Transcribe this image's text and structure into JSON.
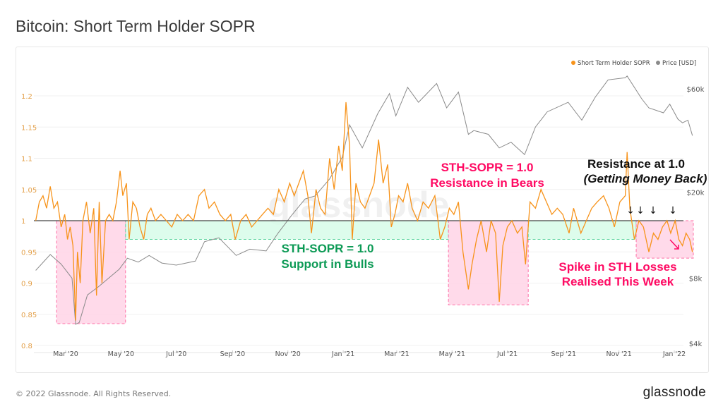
{
  "header": {
    "title": "Bitcoin: Short Term Holder SOPR"
  },
  "footer": {
    "copyright": "© 2022 Glassnode. All Rights Reserved.",
    "logo": "glassnode"
  },
  "watermark": "glassnode",
  "colors": {
    "sopr": "#f7931a",
    "price": "#8a8a8a",
    "pink_zone": "#ffd3e6",
    "green_zone": "#d7fbe9",
    "pink_text": "#ff0a63",
    "green_text": "#0c9a55",
    "left_axis": "#e3a04a"
  },
  "chart_data": {
    "type": "line",
    "title": "Bitcoin: Short Term Holder SOPR",
    "legend": {
      "placement": "top-right",
      "entries": [
        "Short Term Holder SOPR",
        "Price [USD]"
      ]
    },
    "x_range": [
      "2020-01-28",
      "2022-01-21"
    ],
    "x_ticks": [
      [
        "2020-03-01",
        "Mar '20"
      ],
      [
        "2020-05-01",
        "May '20"
      ],
      [
        "2020-07-01",
        "Jul '20"
      ],
      [
        "2020-09-01",
        "Sep '20"
      ],
      [
        "2020-11-01",
        "Nov '20"
      ],
      [
        "2021-01-01",
        "Jan '21"
      ],
      [
        "2021-03-01",
        "Mar '21"
      ],
      [
        "2021-05-01",
        "May '21"
      ],
      [
        "2021-07-01",
        "Jul '21"
      ],
      [
        "2021-09-01",
        "Sep '21"
      ],
      [
        "2021-11-01",
        "Nov '21"
      ],
      [
        "2022-01-01",
        "Jan '22"
      ]
    ],
    "y_left": {
      "range": [
        0.8,
        1.2
      ],
      "ticks": [
        "0.8",
        "0.85",
        "0.9",
        "0.95",
        "1",
        "1.05",
        "1.1",
        "1.15",
        "1.2"
      ],
      "scale": "linear"
    },
    "y_right": {
      "range": [
        4000,
        60000
      ],
      "scale": "log",
      "ticks": [
        [
          4000,
          "$4k"
        ],
        [
          8000,
          "$8k"
        ],
        [
          20000,
          "$20k"
        ],
        [
          60000,
          "$60k"
        ]
      ]
    },
    "grid": true,
    "reference_line": 1.0,
    "zones": [
      {
        "kind": "pink",
        "from": "2020-02-20",
        "to": "2020-05-06",
        "y": [
          0.835,
          1.0
        ]
      },
      {
        "kind": "green",
        "from": "2020-05-06",
        "to": "2021-04-27",
        "y": [
          0.97,
          1.0
        ]
      },
      {
        "kind": "pink",
        "from": "2021-04-27",
        "to": "2021-07-24",
        "y": [
          0.865,
          1.0
        ]
      },
      {
        "kind": "green",
        "from": "2021-07-24",
        "to": "2021-11-20",
        "y": [
          0.97,
          1.0
        ]
      },
      {
        "kind": "pink",
        "from": "2021-11-20",
        "to": "2022-01-22",
        "y": [
          0.94,
          1.0
        ]
      }
    ],
    "annotations": {
      "bears": [
        "STH-SOPR = 1.0",
        "Resistance in Bears"
      ],
      "bulls": [
        "STH-SOPR = 1.0",
        "Support in Bulls"
      ],
      "resistance_title": "Resistance at 1.0",
      "resistance_sub": "(Getting Money Back)",
      "spike": [
        "Spike in STH Losses",
        "Realised This Week"
      ]
    },
    "series": [
      {
        "name": "Short Term Holder SOPR",
        "axis": "left",
        "points": [
          [
            "2020-01-28",
            1.0
          ],
          [
            "2020-02-01",
            1.03
          ],
          [
            "2020-02-05",
            1.04
          ],
          [
            "2020-02-09",
            1.02
          ],
          [
            "2020-02-13",
            1.055
          ],
          [
            "2020-02-17",
            1.02
          ],
          [
            "2020-02-21",
            1.03
          ],
          [
            "2020-02-25",
            0.99
          ],
          [
            "2020-02-29",
            1.01
          ],
          [
            "2020-03-03",
            0.97
          ],
          [
            "2020-03-06",
            0.99
          ],
          [
            "2020-03-09",
            0.96
          ],
          [
            "2020-03-12",
            0.84
          ],
          [
            "2020-03-14",
            0.95
          ],
          [
            "2020-03-17",
            0.9
          ],
          [
            "2020-03-20",
            1.0
          ],
          [
            "2020-03-24",
            1.03
          ],
          [
            "2020-03-28",
            0.98
          ],
          [
            "2020-04-01",
            1.02
          ],
          [
            "2020-04-04",
            0.88
          ],
          [
            "2020-04-07",
            1.03
          ],
          [
            "2020-04-10",
            0.9
          ],
          [
            "2020-04-14",
            1.0
          ],
          [
            "2020-04-18",
            1.01
          ],
          [
            "2020-04-22",
            1.0
          ],
          [
            "2020-04-26",
            1.03
          ],
          [
            "2020-04-30",
            1.08
          ],
          [
            "2020-05-03",
            1.04
          ],
          [
            "2020-05-07",
            1.06
          ],
          [
            "2020-05-10",
            0.97
          ],
          [
            "2020-05-14",
            1.03
          ],
          [
            "2020-05-18",
            1.02
          ],
          [
            "2020-05-22",
            0.99
          ],
          [
            "2020-05-26",
            0.97
          ],
          [
            "2020-05-30",
            1.01
          ],
          [
            "2020-06-03",
            1.02
          ],
          [
            "2020-06-08",
            1.0
          ],
          [
            "2020-06-14",
            1.01
          ],
          [
            "2020-06-20",
            1.0
          ],
          [
            "2020-06-26",
            0.99
          ],
          [
            "2020-07-02",
            1.01
          ],
          [
            "2020-07-08",
            1.0
          ],
          [
            "2020-07-14",
            1.01
          ],
          [
            "2020-07-20",
            1.0
          ],
          [
            "2020-07-26",
            1.04
          ],
          [
            "2020-08-01",
            1.05
          ],
          [
            "2020-08-06",
            1.02
          ],
          [
            "2020-08-12",
            1.03
          ],
          [
            "2020-08-18",
            1.01
          ],
          [
            "2020-08-24",
            1.0
          ],
          [
            "2020-08-30",
            1.01
          ],
          [
            "2020-09-04",
            0.97
          ],
          [
            "2020-09-10",
            1.0
          ],
          [
            "2020-09-16",
            1.01
          ],
          [
            "2020-09-22",
            0.99
          ],
          [
            "2020-09-28",
            1.0
          ],
          [
            "2020-10-04",
            1.01
          ],
          [
            "2020-10-10",
            1.02
          ],
          [
            "2020-10-16",
            1.01
          ],
          [
            "2020-10-22",
            1.05
          ],
          [
            "2020-10-28",
            1.03
          ],
          [
            "2020-11-03",
            1.06
          ],
          [
            "2020-11-08",
            1.04
          ],
          [
            "2020-11-13",
            1.06
          ],
          [
            "2020-11-18",
            1.08
          ],
          [
            "2020-11-23",
            1.04
          ],
          [
            "2020-11-27",
            0.98
          ],
          [
            "2020-12-02",
            1.05
          ],
          [
            "2020-12-07",
            1.02
          ],
          [
            "2020-12-12",
            1.01
          ],
          [
            "2020-12-17",
            1.1
          ],
          [
            "2020-12-22",
            1.05
          ],
          [
            "2020-12-27",
            1.12
          ],
          [
            "2020-12-31",
            1.08
          ],
          [
            "2021-01-04",
            1.19
          ],
          [
            "2021-01-08",
            1.12
          ],
          [
            "2021-01-11",
            0.97
          ],
          [
            "2021-01-15",
            1.06
          ],
          [
            "2021-01-20",
            1.03
          ],
          [
            "2021-01-25",
            1.02
          ],
          [
            "2021-01-30",
            1.04
          ],
          [
            "2021-02-04",
            1.06
          ],
          [
            "2021-02-09",
            1.13
          ],
          [
            "2021-02-14",
            1.06
          ],
          [
            "2021-02-19",
            1.09
          ],
          [
            "2021-02-23",
            0.99
          ],
          [
            "2021-02-27",
            1.01
          ],
          [
            "2021-03-03",
            1.04
          ],
          [
            "2021-03-08",
            1.03
          ],
          [
            "2021-03-13",
            1.06
          ],
          [
            "2021-03-18",
            1.02
          ],
          [
            "2021-03-24",
            1.0
          ],
          [
            "2021-03-30",
            1.03
          ],
          [
            "2021-04-05",
            1.02
          ],
          [
            "2021-04-12",
            1.04
          ],
          [
            "2021-04-18",
            0.97
          ],
          [
            "2021-04-23",
            0.99
          ],
          [
            "2021-04-28",
            1.02
          ],
          [
            "2021-05-03",
            1.01
          ],
          [
            "2021-05-08",
            1.03
          ],
          [
            "2021-05-13",
            0.95
          ],
          [
            "2021-05-19",
            0.89
          ],
          [
            "2021-05-23",
            0.93
          ],
          [
            "2021-05-28",
            0.97
          ],
          [
            "2021-06-02",
            1.0
          ],
          [
            "2021-06-08",
            0.95
          ],
          [
            "2021-06-13",
            1.0
          ],
          [
            "2021-06-18",
            0.98
          ],
          [
            "2021-06-22",
            0.87
          ],
          [
            "2021-06-26",
            0.96
          ],
          [
            "2021-07-01",
            0.99
          ],
          [
            "2021-07-06",
            1.0
          ],
          [
            "2021-07-12",
            0.98
          ],
          [
            "2021-07-17",
            0.99
          ],
          [
            "2021-07-21",
            0.93
          ],
          [
            "2021-07-26",
            1.03
          ],
          [
            "2021-08-01",
            1.02
          ],
          [
            "2021-08-07",
            1.05
          ],
          [
            "2021-08-13",
            1.03
          ],
          [
            "2021-08-19",
            1.01
          ],
          [
            "2021-08-25",
            1.02
          ],
          [
            "2021-08-31",
            1.01
          ],
          [
            "2021-09-07",
            0.98
          ],
          [
            "2021-09-12",
            1.02
          ],
          [
            "2021-09-20",
            0.98
          ],
          [
            "2021-09-26",
            1.0
          ],
          [
            "2021-10-02",
            1.02
          ],
          [
            "2021-10-08",
            1.03
          ],
          [
            "2021-10-15",
            1.04
          ],
          [
            "2021-10-21",
            1.02
          ],
          [
            "2021-10-27",
            0.99
          ],
          [
            "2021-11-02",
            1.03
          ],
          [
            "2021-11-08",
            1.04
          ],
          [
            "2021-11-10",
            1.11
          ],
          [
            "2021-11-13",
            1.02
          ],
          [
            "2021-11-18",
            0.97
          ],
          [
            "2021-11-23",
            1.0
          ],
          [
            "2021-11-28",
            0.99
          ],
          [
            "2021-12-04",
            0.95
          ],
          [
            "2021-12-09",
            0.98
          ],
          [
            "2021-12-14",
            0.97
          ],
          [
            "2021-12-19",
            0.99
          ],
          [
            "2021-12-24",
            1.0
          ],
          [
            "2021-12-28",
            0.98
          ],
          [
            "2022-01-02",
            1.0
          ],
          [
            "2022-01-06",
            0.97
          ],
          [
            "2022-01-10",
            0.96
          ],
          [
            "2022-01-14",
            0.98
          ],
          [
            "2022-01-18",
            0.97
          ],
          [
            "2022-01-21",
            0.95
          ]
        ]
      },
      {
        "name": "Price [USD]",
        "axis": "right",
        "points": [
          [
            "2020-01-28",
            8700
          ],
          [
            "2020-02-13",
            10300
          ],
          [
            "2020-02-25",
            9300
          ],
          [
            "2020-03-08",
            8000
          ],
          [
            "2020-03-12",
            4900
          ],
          [
            "2020-03-16",
            5000
          ],
          [
            "2020-03-25",
            6700
          ],
          [
            "2020-04-06",
            7300
          ],
          [
            "2020-04-29",
            8800
          ],
          [
            "2020-05-08",
            9900
          ],
          [
            "2020-05-20",
            9500
          ],
          [
            "2020-06-01",
            10200
          ],
          [
            "2020-06-15",
            9400
          ],
          [
            "2020-07-01",
            9200
          ],
          [
            "2020-07-22",
            9600
          ],
          [
            "2020-08-01",
            11800
          ],
          [
            "2020-08-17",
            12300
          ],
          [
            "2020-09-05",
            10200
          ],
          [
            "2020-09-20",
            10900
          ],
          [
            "2020-10-08",
            10700
          ],
          [
            "2020-10-21",
            12900
          ],
          [
            "2020-11-05",
            15600
          ],
          [
            "2020-11-20",
            18600
          ],
          [
            "2020-12-01",
            19200
          ],
          [
            "2020-12-17",
            23000
          ],
          [
            "2020-12-31",
            29000
          ],
          [
            "2021-01-08",
            40900
          ],
          [
            "2021-01-22",
            32000
          ],
          [
            "2021-02-08",
            46000
          ],
          [
            "2021-02-21",
            57000
          ],
          [
            "2021-02-28",
            45000
          ],
          [
            "2021-03-13",
            61000
          ],
          [
            "2021-03-25",
            52000
          ],
          [
            "2021-04-14",
            63500
          ],
          [
            "2021-04-25",
            49000
          ],
          [
            "2021-05-08",
            58000
          ],
          [
            "2021-05-19",
            37000
          ],
          [
            "2021-05-25",
            38500
          ],
          [
            "2021-06-10",
            37000
          ],
          [
            "2021-06-22",
            32000
          ],
          [
            "2021-07-05",
            34000
          ],
          [
            "2021-07-20",
            29800
          ],
          [
            "2021-08-01",
            40000
          ],
          [
            "2021-08-14",
            47000
          ],
          [
            "2021-09-06",
            52000
          ],
          [
            "2021-09-21",
            43000
          ],
          [
            "2021-10-06",
            55000
          ],
          [
            "2021-10-20",
            66000
          ],
          [
            "2021-11-08",
            67500
          ],
          [
            "2021-11-10",
            68800
          ],
          [
            "2021-11-26",
            54000
          ],
          [
            "2021-12-04",
            49000
          ],
          [
            "2021-12-20",
            46500
          ],
          [
            "2021-12-27",
            51000
          ],
          [
            "2022-01-05",
            43500
          ],
          [
            "2022-01-10",
            41800
          ],
          [
            "2022-01-16",
            43000
          ],
          [
            "2022-01-21",
            36500
          ]
        ]
      }
    ]
  }
}
